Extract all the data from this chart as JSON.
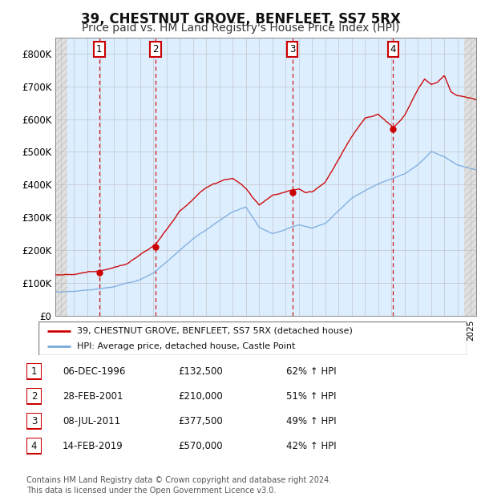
{
  "title": "39, CHESTNUT GROVE, BENFLEET, SS7 5RX",
  "subtitle": "Price paid vs. HM Land Registry's House Price Index (HPI)",
  "title_fontsize": 12,
  "subtitle_fontsize": 10,
  "ylim": [
    0,
    850000
  ],
  "yticks": [
    0,
    100000,
    200000,
    300000,
    400000,
    500000,
    600000,
    700000,
    800000
  ],
  "ytick_labels": [
    "£0",
    "£100K",
    "£200K",
    "£300K",
    "£400K",
    "£500K",
    "£600K",
    "£700K",
    "£800K"
  ],
  "sale_dates_year": [
    1996.92,
    2001.16,
    2011.52,
    2019.12
  ],
  "sale_prices": [
    132500,
    210000,
    377500,
    570000
  ],
  "sale_labels": [
    "1",
    "2",
    "3",
    "4"
  ],
  "sale_color": "#cc0000",
  "hpi_color": "#7aaadd",
  "legend_sale": "39, CHESTNUT GROVE, BENFLEET, SS7 5RX (detached house)",
  "legend_hpi": "HPI: Average price, detached house, Castle Point",
  "table_rows": [
    [
      "1",
      "06-DEC-1996",
      "£132,500",
      "62% ↑ HPI"
    ],
    [
      "2",
      "28-FEB-2001",
      "£210,000",
      "51% ↑ HPI"
    ],
    [
      "3",
      "08-JUL-2011",
      "£377,500",
      "49% ↑ HPI"
    ],
    [
      "4",
      "14-FEB-2019",
      "£570,000",
      "42% ↑ HPI"
    ]
  ],
  "footer": "Contains HM Land Registry data © Crown copyright and database right 2024.\nThis data is licensed under the Open Government Licence v3.0.",
  "bg_color": "#ffffff",
  "plot_bg_color": "#ddeeff",
  "hatch_bg_color": "#e8e8e8",
  "grid_color": "#aaaaaa",
  "xlim_start": 1993.6,
  "xlim_end": 2025.4,
  "hatch_left_end": 1994.5,
  "hatch_right_start": 2024.5
}
